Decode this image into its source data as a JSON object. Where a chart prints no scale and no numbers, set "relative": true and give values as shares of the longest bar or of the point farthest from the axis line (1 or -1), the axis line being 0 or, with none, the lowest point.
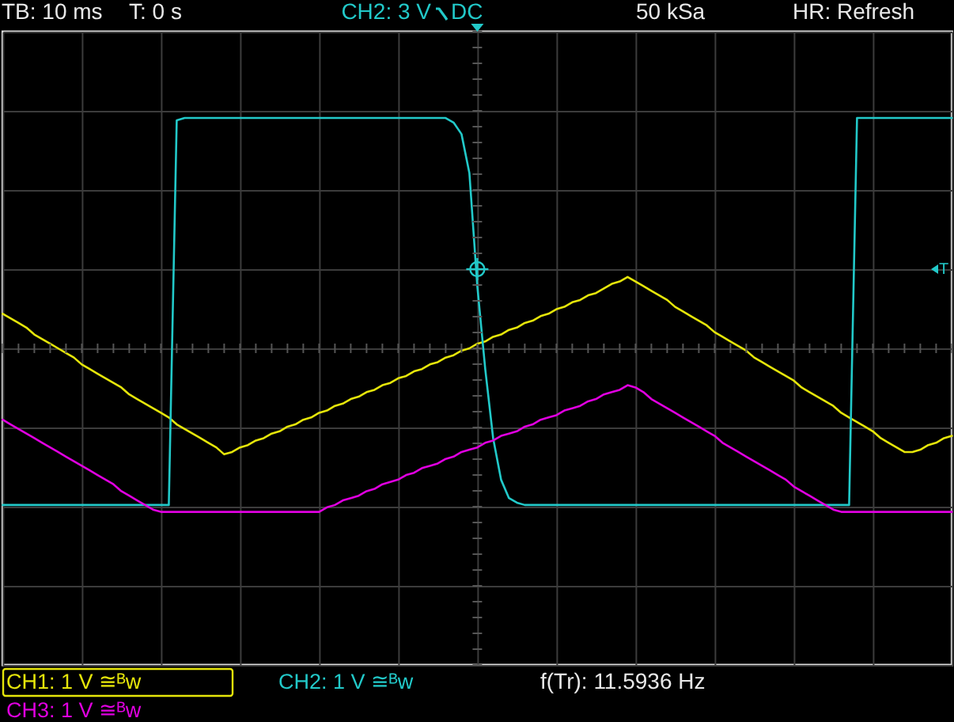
{
  "chart_data": {
    "type": "line",
    "relative": true,
    "categories": [
      null,
      null,
      null,
      null,
      null,
      null,
      null,
      null,
      null,
      null,
      null,
      null,
      null,
      null,
      null,
      null,
      null,
      null,
      null,
      null,
      null,
      null,
      null,
      null,
      null,
      null,
      null,
      null,
      null,
      null,
      null,
      null,
      null,
      null,
      null,
      null,
      null,
      null,
      null,
      null,
      null,
      null,
      null,
      null,
      null,
      null,
      null,
      null,
      null,
      null,
      null,
      null,
      null,
      null,
      null,
      null,
      null,
      null,
      null,
      null,
      null,
      null,
      null,
      null,
      null,
      null,
      null,
      null,
      null,
      null,
      null,
      null,
      null,
      null,
      null,
      null,
      null,
      null,
      null,
      null,
      null,
      null,
      null,
      null,
      null,
      null,
      null,
      null,
      null,
      null,
      null,
      null,
      null,
      null,
      null,
      null,
      null,
      null,
      null,
      null,
      null,
      null,
      null,
      null,
      null,
      null,
      null,
      null,
      null,
      null,
      null,
      null,
      null,
      null,
      null,
      null,
      null,
      null,
      null,
      null,
      null
    ],
    "series": [
      {
        "name": "CH1: 1 V ≅ᴮw",
        "color": "#e5e50a",
        "values": [
          0.15,
          0.13,
          0.11,
          0.09,
          0.06,
          0.04,
          0.02,
          0,
          -0.02,
          -0.04,
          -0.07,
          -0.09,
          -0.11,
          -0.13,
          -0.15,
          -0.17,
          -0.2,
          -0.22,
          -0.24,
          -0.26,
          -0.28,
          -0.3,
          -0.33,
          -0.35,
          -0.37,
          -0.39,
          -0.41,
          -0.43,
          -0.46,
          -0.45,
          -0.43,
          -0.42,
          -0.4,
          -0.39,
          -0.37,
          -0.36,
          -0.34,
          -0.33,
          -0.31,
          -0.3,
          -0.28,
          -0.27,
          -0.25,
          -0.24,
          -0.22,
          -0.21,
          -0.19,
          -0.18,
          -0.16,
          -0.15,
          -0.13,
          -0.12,
          -0.1,
          -0.09,
          -0.07,
          -0.06,
          -0.04,
          -0.03,
          -0.01,
          0,
          0.02,
          0.03,
          0.05,
          0.06,
          0.08,
          0.09,
          0.11,
          0.12,
          0.14,
          0.15,
          0.17,
          0.18,
          0.2,
          0.21,
          0.23,
          0.24,
          0.26,
          0.28,
          0.29,
          0.31,
          0.29,
          0.27,
          0.25,
          0.23,
          0.21,
          0.18,
          0.16,
          0.14,
          0.12,
          0.1,
          0.07,
          0.05,
          0.03,
          0.01,
          -0.01,
          -0.04,
          -0.06,
          -0.08,
          -0.1,
          -0.12,
          -0.14,
          -0.17,
          -0.19,
          -0.21,
          -0.23,
          -0.25,
          -0.28,
          -0.3,
          -0.32,
          -0.34,
          -0.36,
          -0.39,
          -0.41,
          -0.43,
          -0.45,
          -0.45,
          -0.44,
          -0.42,
          -0.41,
          -0.39,
          -0.38
        ]
      },
      {
        "name": "CH2: 1 V ≅ᴮw",
        "color": "#22c9c9",
        "values": [
          -0.68,
          -0.68,
          -0.68,
          -0.68,
          -0.68,
          -0.68,
          -0.68,
          -0.68,
          -0.68,
          -0.68,
          -0.68,
          -0.68,
          -0.68,
          -0.68,
          -0.68,
          -0.68,
          -0.68,
          -0.68,
          -0.68,
          -0.68,
          -0.68,
          -0.68,
          0.99,
          1,
          1,
          1,
          1,
          1,
          1,
          1,
          1,
          1,
          1,
          1,
          1,
          1,
          1,
          1,
          1,
          1,
          1,
          1,
          1,
          1,
          1,
          1,
          1,
          1,
          1,
          1,
          1,
          1,
          1,
          1,
          1,
          1,
          1,
          0.98,
          0.93,
          0.76,
          0.27,
          -0.09,
          -0.39,
          -0.57,
          -0.65,
          -0.67,
          -0.68,
          -0.68,
          -0.68,
          -0.68,
          -0.68,
          -0.68,
          -0.68,
          -0.68,
          -0.68,
          -0.68,
          -0.68,
          -0.68,
          -0.68,
          -0.68,
          -0.68,
          -0.68,
          -0.68,
          -0.68,
          -0.68,
          -0.68,
          -0.68,
          -0.68,
          -0.68,
          -0.68,
          -0.68,
          -0.68,
          -0.68,
          -0.68,
          -0.68,
          -0.68,
          -0.68,
          -0.68,
          -0.68,
          -0.68,
          -0.68,
          -0.68,
          -0.68,
          -0.68,
          -0.68,
          -0.68,
          -0.68,
          -0.68,
          1,
          1,
          1,
          1,
          1,
          1,
          1,
          1,
          1,
          1,
          1,
          1,
          1
        ]
      },
      {
        "name": "CH3: 1 V ≅ᴮw",
        "color": "#e000e0",
        "values": [
          -0.31,
          -0.33,
          -0.35,
          -0.37,
          -0.39,
          -0.41,
          -0.43,
          -0.45,
          -0.47,
          -0.49,
          -0.51,
          -0.53,
          -0.55,
          -0.57,
          -0.59,
          -0.62,
          -0.64,
          -0.66,
          -0.68,
          -0.7,
          -0.71,
          -0.71,
          -0.71,
          -0.71,
          -0.71,
          -0.71,
          -0.71,
          -0.71,
          -0.71,
          -0.71,
          -0.71,
          -0.71,
          -0.71,
          -0.71,
          -0.71,
          -0.71,
          -0.71,
          -0.71,
          -0.71,
          -0.71,
          -0.71,
          -0.69,
          -0.68,
          -0.66,
          -0.65,
          -0.64,
          -0.62,
          -0.61,
          -0.59,
          -0.58,
          -0.57,
          -0.55,
          -0.54,
          -0.52,
          -0.51,
          -0.5,
          -0.48,
          -0.47,
          -0.45,
          -0.44,
          -0.43,
          -0.41,
          -0.4,
          -0.38,
          -0.37,
          -0.36,
          -0.34,
          -0.33,
          -0.31,
          -0.3,
          -0.29,
          -0.27,
          -0.26,
          -0.25,
          -0.23,
          -0.22,
          -0.2,
          -0.19,
          -0.18,
          -0.16,
          -0.17,
          -0.19,
          -0.22,
          -0.24,
          -0.26,
          -0.28,
          -0.3,
          -0.32,
          -0.34,
          -0.36,
          -0.38,
          -0.41,
          -0.43,
          -0.45,
          -0.47,
          -0.49,
          -0.51,
          -0.53,
          -0.55,
          -0.57,
          -0.6,
          -0.62,
          -0.64,
          -0.66,
          -0.68,
          -0.7,
          -0.71,
          -0.71,
          -0.71,
          -0.71,
          -0.71,
          -0.71,
          -0.71,
          -0.71,
          -0.71,
          -0.71,
          -0.71,
          -0.71,
          -0.71,
          -0.71,
          -0.71
        ]
      }
    ],
    "annotations": [
      "TB: 10 ms",
      "T: 0 s",
      "CH2: 3 V",
      "DC",
      "50 kSa",
      "HR: Refresh",
      "f(Tr): 11.5936 Hz",
      "T"
    ],
    "grid": true,
    "legend": "bottom"
  }
}
